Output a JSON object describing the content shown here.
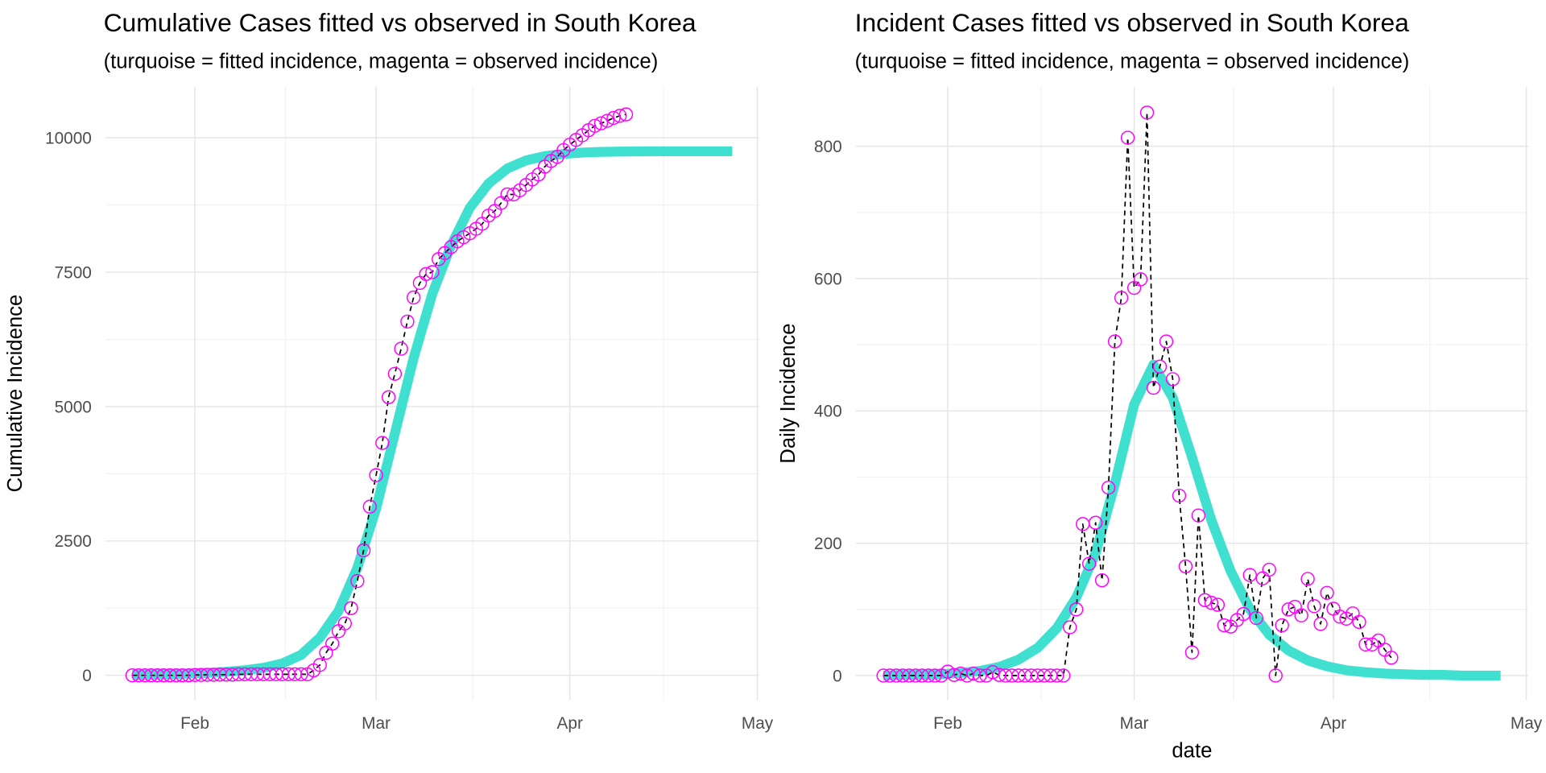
{
  "chart_data": [
    {
      "type": "line",
      "title": "Cumulative Cases fitted vs observed in South Korea",
      "subtitle": "(turquoise = fitted incidence, magenta = observed incidence)",
      "ylabel": "Cumulative Incidence",
      "xlim": [
        17.7,
        122.3
      ],
      "xticks": [
        {
          "value": 32,
          "label": "Feb"
        },
        {
          "value": 61,
          "label": "Mar"
        },
        {
          "value": 92,
          "label": "Apr"
        },
        {
          "value": 122,
          "label": "May"
        }
      ],
      "ylim": [
        -460,
        10950
      ],
      "yticks": [
        0,
        2500,
        5000,
        7500,
        10000
      ],
      "grid": true,
      "series": [
        {
          "color": "#40e0d0",
          "linestyle": "solid",
          "x": [
            22,
            25,
            28,
            31,
            34,
            37,
            40,
            43,
            46,
            49,
            52,
            55,
            58,
            61,
            64,
            67,
            70,
            73,
            76,
            79,
            82,
            85,
            88,
            91,
            94,
            97,
            100,
            103,
            106,
            109,
            112,
            115,
            118
          ],
          "values": [
            10,
            15,
            22,
            32,
            45,
            65,
            95,
            140,
            220,
            380,
            700,
            1200,
            2000,
            3100,
            4500,
            5900,
            7100,
            8000,
            8700,
            9150,
            9430,
            9580,
            9660,
            9700,
            9725,
            9738,
            9745,
            9748,
            9750,
            9750,
            9750,
            9750,
            9750
          ]
        },
        {
          "color": "#ff00ff",
          "line_color": "#000000",
          "linestyle": "dashed",
          "marker": "circle",
          "x": [
            22,
            23,
            24,
            25,
            26,
            27,
            28,
            29,
            30,
            31,
            32,
            33,
            34,
            35,
            36,
            37,
            38,
            39,
            40,
            41,
            42,
            43,
            44,
            45,
            46,
            47,
            48,
            49,
            50,
            51,
            52,
            53,
            54,
            55,
            56,
            57,
            58,
            59,
            60,
            61,
            62,
            63,
            64,
            65,
            66,
            67,
            68,
            69,
            70,
            71,
            72,
            73,
            74,
            75,
            76,
            77,
            78,
            79,
            80,
            81,
            82,
            83,
            84,
            85,
            86,
            87,
            88,
            89,
            90,
            91,
            92,
            93,
            94,
            95,
            96,
            97,
            98,
            99,
            100,
            101
          ],
          "values": [
            0,
            0,
            0,
            0,
            0,
            0,
            0,
            0,
            0,
            0,
            6,
            7,
            10,
            10,
            13,
            13,
            13,
            18,
            19,
            19,
            19,
            19,
            19,
            19,
            19,
            19,
            19,
            19,
            19,
            92,
            192,
            421,
            590,
            821,
            965,
            1249,
            1754,
            2325,
            3138,
            3724,
            4323,
            5174,
            5609,
            6076,
            6581,
            7029,
            7301,
            7466,
            7501,
            7743,
            7857,
            7967,
            8074,
            8150,
            8224,
            8308,
            8401,
            8553,
            8640,
            8787,
            8947,
            8947,
            9023,
            9123,
            9227,
            9318,
            9464,
            9569,
            9647,
            9772,
            9873,
            9962,
            10048,
            10142,
            10223,
            10270,
            10317,
            10370,
            10409,
            10436
          ]
        }
      ]
    },
    {
      "type": "line",
      "title": "Incident Cases fitted vs observed in South Korea",
      "subtitle": "(turquoise = fitted incidence, magenta = observed incidence)",
      "ylabel": "Daily Incidence",
      "xlabel": "date",
      "xlim": [
        17.7,
        122.3
      ],
      "xticks": [
        {
          "value": 32,
          "label": "Feb"
        },
        {
          "value": 61,
          "label": "Mar"
        },
        {
          "value": 92,
          "label": "Apr"
        },
        {
          "value": 122,
          "label": "May"
        }
      ],
      "ylim": [
        -37,
        890
      ],
      "yticks": [
        0,
        200,
        400,
        600,
        800
      ],
      "grid": true,
      "series": [
        {
          "color": "#40e0d0",
          "linestyle": "solid",
          "x": [
            22,
            25,
            28,
            31,
            34,
            37,
            40,
            43,
            46,
            49,
            52,
            55,
            58,
            61,
            64,
            67,
            70,
            73,
            76,
            79,
            82,
            85,
            88,
            91,
            94,
            97,
            100,
            103,
            106,
            109,
            112,
            115,
            118
          ],
          "values": [
            0,
            1,
            1,
            2,
            4,
            7,
            13,
            24,
            42,
            72,
            118,
            185,
            290,
            410,
            470,
            420,
            330,
            235,
            158,
            100,
            62,
            38,
            23,
            14,
            8,
            5,
            3,
            2,
            1,
            1,
            0,
            0,
            0
          ]
        },
        {
          "color": "#ff00ff",
          "line_color": "#000000",
          "linestyle": "dashed",
          "marker": "circle",
          "x": [
            22,
            23,
            24,
            25,
            26,
            27,
            28,
            29,
            30,
            31,
            32,
            33,
            34,
            35,
            36,
            37,
            38,
            39,
            40,
            41,
            42,
            43,
            44,
            45,
            46,
            47,
            48,
            49,
            50,
            51,
            52,
            53,
            54,
            55,
            56,
            57,
            58,
            59,
            60,
            61,
            62,
            63,
            64,
            65,
            66,
            67,
            68,
            69,
            70,
            71,
            72,
            73,
            74,
            75,
            76,
            77,
            78,
            79,
            80,
            81,
            82,
            83,
            84,
            85,
            86,
            87,
            88,
            89,
            90,
            91,
            92,
            93,
            94,
            95,
            96,
            97,
            98,
            99,
            100,
            101
          ],
          "values": [
            0,
            0,
            0,
            0,
            0,
            0,
            0,
            0,
            0,
            0,
            6,
            1,
            3,
            0,
            3,
            0,
            0,
            5,
            1,
            0,
            0,
            0,
            0,
            0,
            0,
            0,
            0,
            0,
            0,
            73,
            100,
            229,
            169,
            231,
            144,
            284,
            505,
            571,
            813,
            586,
            599,
            851,
            435,
            467,
            505,
            448,
            272,
            165,
            35,
            242,
            114,
            110,
            107,
            76,
            74,
            84,
            93,
            152,
            87,
            147,
            160,
            0,
            76,
            100,
            104,
            91,
            146,
            105,
            78,
            125,
            101,
            89,
            86,
            94,
            81,
            47,
            47,
            53,
            39,
            27
          ]
        }
      ]
    }
  ]
}
